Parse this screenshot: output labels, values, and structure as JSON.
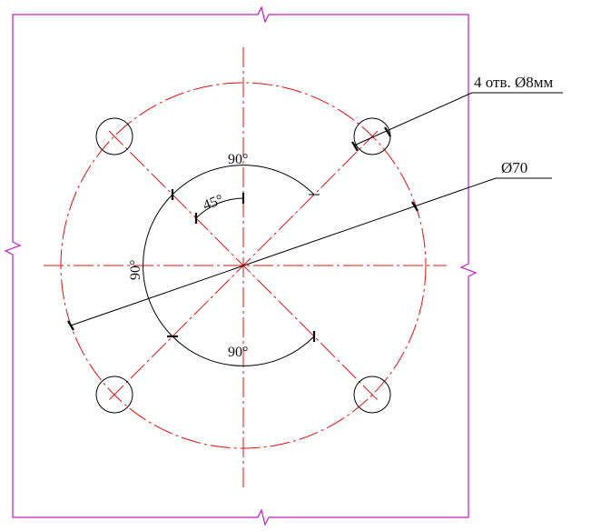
{
  "drawing": {
    "colors": {
      "frame": "#c41ac4",
      "centerline": "#e01010",
      "geometry": "#000000",
      "tick": "#000000"
    },
    "annotations": {
      "holes_label": "4 отв. Ø8мм",
      "bolt_circle_label": "Ø70",
      "angle_top": "90°",
      "angle_bottom": "90°",
      "angle_left": "90°",
      "angle_small": "45°"
    },
    "holes": {
      "count": 4,
      "diameter_mm": 8
    },
    "bolt_circle_diameter_mm": 70
  }
}
